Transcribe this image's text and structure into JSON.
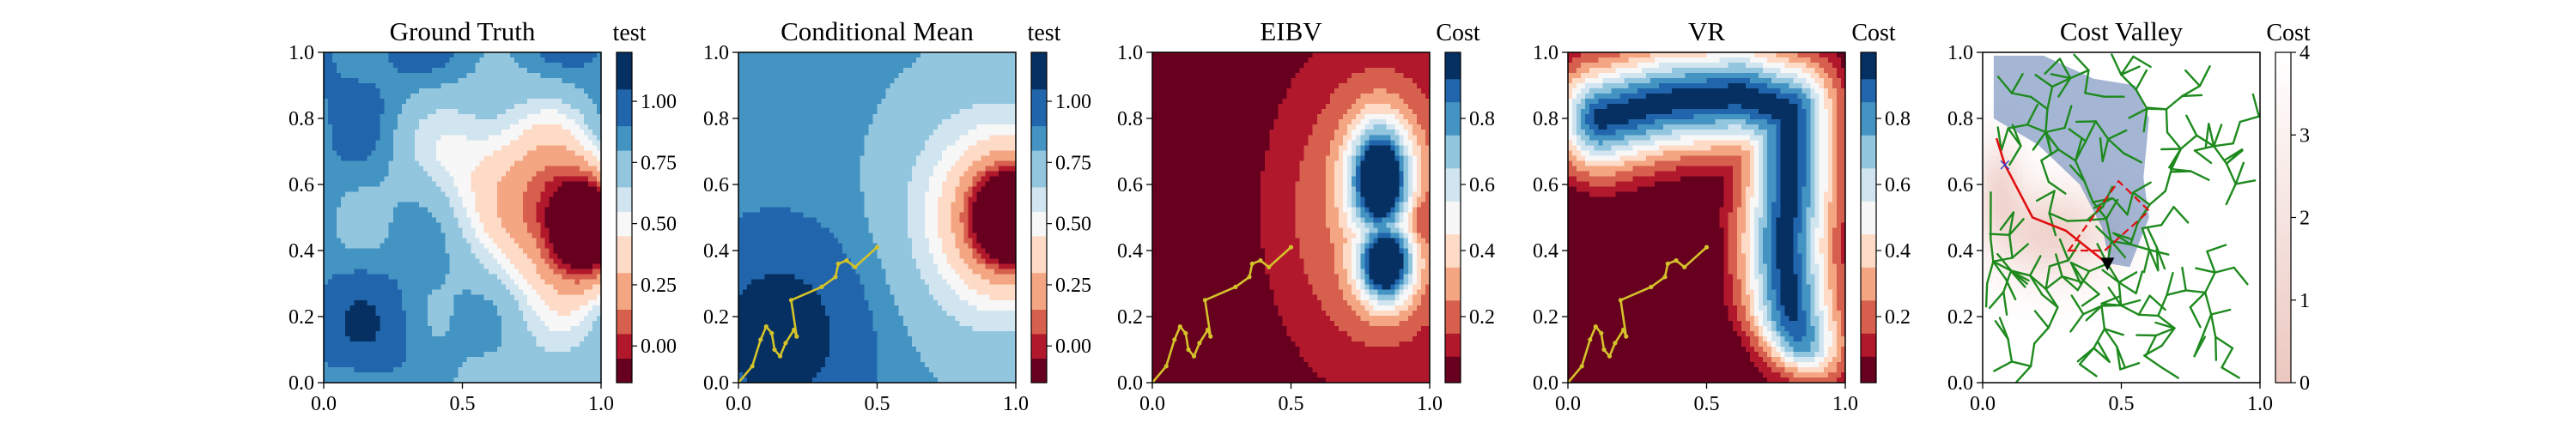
{
  "figure": {
    "background": "#ffffff"
  },
  "colors": {
    "rdbu": [
      "#67001f",
      "#b2182b",
      "#d6604d",
      "#f4a582",
      "#fddbc7",
      "#f7f7f7",
      "#d1e5f0",
      "#92c5de",
      "#4393c3",
      "#2166ac",
      "#053061"
    ],
    "path": "#d4c22a",
    "tree": "#1e8a1e",
    "route": "#e01010",
    "overlay": "#5a7ab0",
    "cost_cmap_low": "#ecc8c0",
    "cost_cmap_high": "#ffffff"
  },
  "chart_data": [
    {
      "type": "heatmap",
      "title": "Ground Truth",
      "xlim": [
        0,
        1
      ],
      "ylim": [
        0,
        1
      ],
      "xticks": [
        "0.0",
        "0.5",
        "1.0"
      ],
      "yticks": [
        "0.0",
        "0.2",
        "0.4",
        "0.6",
        "0.8",
        "1.0"
      ],
      "colorbar": {
        "label": "test",
        "ticks": [
          "0.00",
          "0.25",
          "0.50",
          "0.75",
          "1.00"
        ],
        "tick_values": [
          0,
          0.25,
          0.5,
          0.75,
          1.0
        ],
        "range": [
          -0.15,
          1.2
        ]
      },
      "field": "ground_truth",
      "levels": [
        -0.05,
        0.05,
        0.15,
        0.3,
        0.45,
        0.55,
        0.65,
        0.8,
        0.9,
        1.05
      ]
    },
    {
      "type": "heatmap",
      "title": "Conditional Mean",
      "xlim": [
        0,
        1
      ],
      "ylim": [
        0,
        1
      ],
      "xticks": [
        "0.0",
        "0.5",
        "1.0"
      ],
      "yticks": [
        "0.0",
        "0.2",
        "0.4",
        "0.6",
        "0.8",
        "1.0"
      ],
      "colorbar": {
        "label": "test",
        "ticks": [
          "0.00",
          "0.25",
          "0.50",
          "0.75",
          "1.00"
        ],
        "tick_values": [
          0,
          0.25,
          0.5,
          0.75,
          1.0
        ],
        "range": [
          -0.15,
          1.2
        ]
      },
      "field": "conditional_mean",
      "levels": [
        -0.05,
        0.05,
        0.15,
        0.3,
        0.45,
        0.55,
        0.65,
        0.8,
        0.9,
        1.05
      ],
      "path": [
        [
          0.0,
          0.0
        ],
        [
          0.05,
          0.05
        ],
        [
          0.08,
          0.13
        ],
        [
          0.1,
          0.17
        ],
        [
          0.12,
          0.15
        ],
        [
          0.13,
          0.1
        ],
        [
          0.15,
          0.08
        ],
        [
          0.17,
          0.12
        ],
        [
          0.2,
          0.16
        ],
        [
          0.21,
          0.14
        ],
        [
          0.19,
          0.25
        ],
        [
          0.3,
          0.29
        ],
        [
          0.35,
          0.32
        ],
        [
          0.36,
          0.36
        ],
        [
          0.39,
          0.37
        ],
        [
          0.42,
          0.35
        ],
        [
          0.5,
          0.41
        ]
      ]
    },
    {
      "type": "heatmap",
      "title": "EIBV",
      "xlim": [
        0,
        1
      ],
      "ylim": [
        0,
        1
      ],
      "xticks": [
        "0.0",
        "0.5",
        "1.0"
      ],
      "yticks": [
        "0.0",
        "0.2",
        "0.4",
        "0.6",
        "0.8",
        "1.0"
      ],
      "colorbar": {
        "label": "Cost",
        "ticks": [
          "0.2",
          "0.4",
          "0.6",
          "0.8"
        ],
        "tick_values": [
          0.2,
          0.4,
          0.6,
          0.8
        ],
        "range": [
          0.0,
          1.0
        ]
      },
      "field": "eibv",
      "levels": [
        0.08,
        0.15,
        0.25,
        0.35,
        0.45,
        0.55,
        0.65,
        0.75,
        0.85,
        0.92
      ],
      "path": [
        [
          0.0,
          0.0
        ],
        [
          0.05,
          0.05
        ],
        [
          0.08,
          0.13
        ],
        [
          0.1,
          0.17
        ],
        [
          0.12,
          0.15
        ],
        [
          0.13,
          0.1
        ],
        [
          0.15,
          0.08
        ],
        [
          0.17,
          0.12
        ],
        [
          0.2,
          0.16
        ],
        [
          0.21,
          0.14
        ],
        [
          0.19,
          0.25
        ],
        [
          0.3,
          0.29
        ],
        [
          0.35,
          0.32
        ],
        [
          0.36,
          0.36
        ],
        [
          0.39,
          0.37
        ],
        [
          0.42,
          0.35
        ],
        [
          0.5,
          0.41
        ]
      ]
    },
    {
      "type": "heatmap",
      "title": "VR",
      "xlim": [
        0,
        1
      ],
      "ylim": [
        0,
        1
      ],
      "xticks": [
        "0.0",
        "0.5",
        "1.0"
      ],
      "yticks": [
        "0.0",
        "0.2",
        "0.4",
        "0.6",
        "0.8",
        "1.0"
      ],
      "colorbar": {
        "label": "Cost",
        "ticks": [
          "0.2",
          "0.4",
          "0.6",
          "0.8"
        ],
        "tick_values": [
          0.2,
          0.4,
          0.6,
          0.8
        ],
        "range": [
          0.0,
          1.0
        ]
      },
      "field": "vr",
      "levels": [
        0.08,
        0.15,
        0.25,
        0.35,
        0.45,
        0.55,
        0.65,
        0.75,
        0.85,
        0.92
      ],
      "path": [
        [
          0.0,
          0.0
        ],
        [
          0.05,
          0.05
        ],
        [
          0.08,
          0.13
        ],
        [
          0.1,
          0.17
        ],
        [
          0.12,
          0.15
        ],
        [
          0.13,
          0.1
        ],
        [
          0.15,
          0.08
        ],
        [
          0.17,
          0.12
        ],
        [
          0.2,
          0.16
        ],
        [
          0.21,
          0.14
        ],
        [
          0.19,
          0.25
        ],
        [
          0.3,
          0.29
        ],
        [
          0.35,
          0.32
        ],
        [
          0.36,
          0.36
        ],
        [
          0.39,
          0.37
        ],
        [
          0.42,
          0.35
        ],
        [
          0.5,
          0.41
        ]
      ]
    },
    {
      "type": "heatmap",
      "title": "Cost Valley",
      "xlim": [
        0,
        1
      ],
      "ylim": [
        0,
        1
      ],
      "xticks": [
        "0.0",
        "0.5",
        "1.0"
      ],
      "yticks": [
        "0.0",
        "0.2",
        "0.4",
        "0.6",
        "0.8",
        "1.0"
      ],
      "colorbar": {
        "label": "Cost",
        "ticks": [
          "0",
          "1",
          "2",
          "3",
          "4"
        ],
        "tick_values": [
          0,
          1,
          2,
          3,
          4
        ],
        "range": [
          0,
          4
        ]
      },
      "field": "cost_valley",
      "current_location": [
        0.45,
        0.36
      ],
      "target_marker": [
        0.08,
        0.66
      ],
      "route": [
        [
          0.45,
          0.36
        ],
        [
          0.3,
          0.46
        ],
        [
          0.18,
          0.5
        ],
        [
          0.08,
          0.66
        ],
        [
          0.05,
          0.74
        ]
      ],
      "dashed_polygon": [
        [
          0.31,
          0.4
        ],
        [
          0.44,
          0.4
        ],
        [
          0.6,
          0.52
        ],
        [
          0.49,
          0.61
        ]
      ]
    }
  ]
}
